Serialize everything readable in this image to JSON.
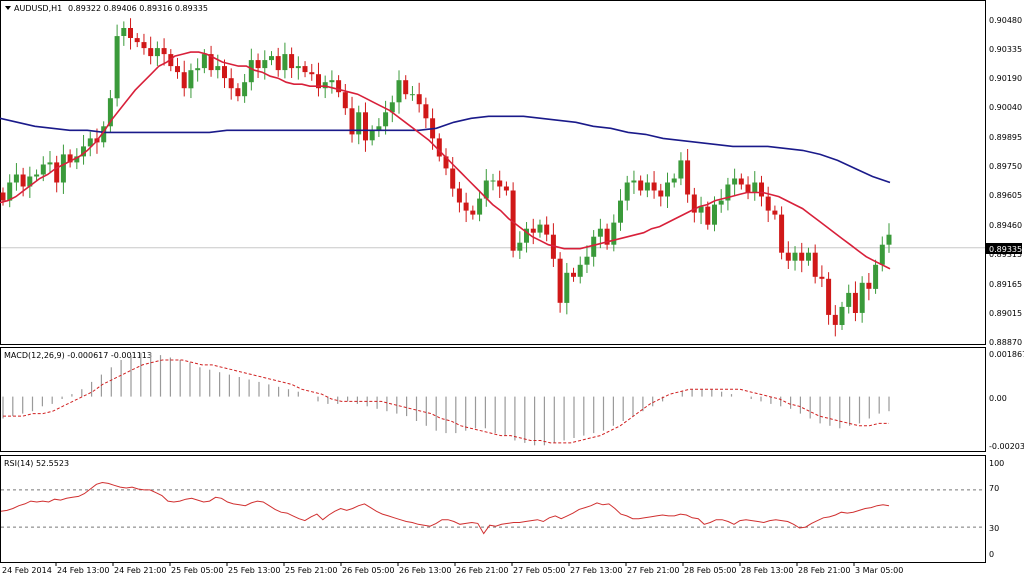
{
  "header": {
    "symbol": "AUDUSD,H1",
    "ohlc": "0.89322 0.89406 0.89316 0.89335"
  },
  "colors": {
    "bull": "#3a9a3a",
    "bear": "#d01818",
    "ma_fast": "#d8203a",
    "ma_slow": "#1a1a8a",
    "macd_hist": "#9a9a9a",
    "macd_signal": "#d02020",
    "rsi": "#d03030",
    "grid_dash": "#777777"
  },
  "chart_data": [
    {
      "type": "candlestick",
      "title": "AUDUSD,H1",
      "ylim": [
        0.8887,
        0.9048
      ],
      "yticks": [
        "0.90480",
        "0.90335",
        "0.90190",
        "0.90040",
        "0.89895",
        "0.89750",
        "0.89605",
        "0.89460",
        "0.89315",
        "0.89165",
        "0.89015",
        "0.88870"
      ],
      "current_price": "0.89335",
      "xticks": [
        "24 Feb 2014",
        "24 Feb 13:00",
        "24 Feb 21:00",
        "25 Feb 05:00",
        "25 Feb 13:00",
        "25 Feb 21:00",
        "26 Feb 05:00",
        "26 Feb 13:00",
        "26 Feb 21:00",
        "27 Feb 05:00",
        "27 Feb 13:00",
        "27 Feb 21:00",
        "28 Feb 05:00",
        "28 Feb 13:00",
        "28 Feb 21:00",
        "3 Mar 05:00"
      ],
      "closes": [
        0.8957,
        0.8966,
        0.897,
        0.8964,
        0.8969,
        0.897,
        0.8975,
        0.8976,
        0.8966,
        0.898,
        0.8976,
        0.8979,
        0.8984,
        0.8988,
        0.8986,
        0.8994,
        0.9008,
        0.9039,
        0.9043,
        0.9038,
        0.9036,
        0.9033,
        0.9029,
        0.9033,
        0.903,
        0.9024,
        0.9021,
        0.9013,
        0.9022,
        0.9023,
        0.903,
        0.9022,
        0.9024,
        0.9018,
        0.9013,
        0.9009,
        0.9016,
        0.9027,
        0.9023,
        0.9027,
        0.9029,
        0.9022,
        0.903,
        0.9023,
        0.9024,
        0.9021,
        0.902,
        0.9013,
        0.9016,
        0.9017,
        0.9011,
        0.9003,
        0.899,
        0.9001,
        0.8987,
        0.8992,
        0.8994,
        0.9001,
        0.9006,
        0.9017,
        0.901,
        0.901,
        0.9005,
        0.8998,
        0.8988,
        0.8979,
        0.8973,
        0.8963,
        0.8956,
        0.8952,
        0.895,
        0.8958,
        0.8967,
        0.8967,
        0.8964,
        0.8962,
        0.8932,
        0.8936,
        0.8943,
        0.8941,
        0.8945,
        0.894,
        0.8928,
        0.8906,
        0.8921,
        0.8919,
        0.8925,
        0.8929,
        0.8939,
        0.8943,
        0.8935,
        0.8946,
        0.8957,
        0.8966,
        0.8967,
        0.8962,
        0.8966,
        0.8962,
        0.8959,
        0.8966,
        0.8968,
        0.8977,
        0.896,
        0.8951,
        0.8954,
        0.8945,
        0.8955,
        0.8957,
        0.8965,
        0.8968,
        0.8965,
        0.8961,
        0.8966,
        0.8959,
        0.8952,
        0.895,
        0.8931,
        0.8927,
        0.8931,
        0.8927,
        0.8931,
        0.8919,
        0.8918,
        0.89,
        0.8895,
        0.8904,
        0.8911,
        0.8901,
        0.8916,
        0.8913,
        0.8925,
        0.8935,
        0.894
      ],
      "series": [
        {
          "name": "",
          "kind": "MA fast",
          "values": [
            0.8956,
            0.8957,
            0.8959,
            0.8962,
            0.8965,
            0.8968,
            0.897,
            0.8973,
            0.8975,
            0.8977,
            0.8979,
            0.8982,
            0.8986,
            0.8991,
            0.8997,
            0.9002,
            0.9007,
            0.9012,
            0.9016,
            0.902,
            0.9024,
            0.9026,
            0.9029,
            0.903,
            0.9031,
            0.9031,
            0.903,
            0.9028,
            0.9026,
            0.9025,
            0.9024,
            0.9024,
            0.9022,
            0.9021,
            0.9019,
            0.9018,
            0.9016,
            0.9015,
            0.9015,
            0.9014,
            0.9014,
            0.9014,
            0.9013,
            0.9012,
            0.9011,
            0.901,
            0.9008,
            0.9006,
            0.9004,
            0.9002,
            0.8999,
            0.8996,
            0.8993,
            0.899,
            0.8987,
            0.8983,
            0.8979,
            0.8975,
            0.8971,
            0.8967,
            0.8963,
            0.8959,
            0.8955,
            0.8952,
            0.8948,
            0.8945,
            0.8942,
            0.8939,
            0.8937,
            0.8935,
            0.8934,
            0.8933,
            0.8933,
            0.8933,
            0.8934,
            0.8935,
            0.8936,
            0.8937,
            0.8938,
            0.8939,
            0.894,
            0.8941,
            0.8943,
            0.8944,
            0.8946,
            0.8948,
            0.895,
            0.8952,
            0.8954,
            0.8955,
            0.8957,
            0.8958,
            0.8959,
            0.896,
            0.8961,
            0.8961,
            0.8961,
            0.896,
            0.8959,
            0.8957,
            0.8955,
            0.8953,
            0.895,
            0.8947,
            0.8944,
            0.8941,
            0.8938,
            0.8935,
            0.8932,
            0.8929,
            0.8927,
            0.8925,
            0.8923
          ]
        },
        {
          "name": "",
          "kind": "MA slow",
          "values": [
            0.8998,
            0.8996,
            0.8994,
            0.8993,
            0.8992,
            0.8992,
            0.8991,
            0.8991,
            0.8991,
            0.8991,
            0.8991,
            0.8991,
            0.8991,
            0.8992,
            0.8992,
            0.8992,
            0.8992,
            0.8992,
            0.8992,
            0.8992,
            0.8992,
            0.8992,
            0.8992,
            0.8992,
            0.8992,
            0.8993,
            0.8996,
            0.8998,
            0.8999,
            0.8999,
            0.8999,
            0.8998,
            0.8997,
            0.8996,
            0.8994,
            0.8993,
            0.8991,
            0.899,
            0.8988,
            0.8987,
            0.8986,
            0.8985,
            0.8984,
            0.8984,
            0.8984,
            0.8983,
            0.8982,
            0.898,
            0.8977,
            0.8973,
            0.8969,
            0.8966
          ]
        }
      ]
    },
    {
      "type": "bar+line",
      "title": "MACD(12,26,9) -0.000617 -0.001113",
      "ylim": [
        -0.00215,
        0.00195
      ],
      "yticks": [
        "0.001867",
        "0.00",
        "-0.00203"
      ],
      "histogram": [
        -0.0009,
        -0.0008,
        -0.0007,
        -0.0006,
        -0.0004,
        -0.0003,
        -0.0001,
        0.0001,
        0.0003,
        0.0006,
        0.0009,
        0.0012,
        0.0015,
        0.0017,
        0.0018,
        0.0018,
        0.0017,
        0.0016,
        0.0015,
        0.0014,
        0.0012,
        0.0011,
        0.001,
        0.0009,
        0.0008,
        0.0007,
        0.0006,
        0.0005,
        0.0004,
        0.0003,
        0.0002,
        0.0,
        -0.0002,
        -0.0003,
        -0.0003,
        -0.0002,
        -0.0003,
        -0.0004,
        -0.0005,
        -0.0006,
        -0.0007,
        -0.0008,
        -0.001,
        -0.0012,
        -0.0014,
        -0.0015,
        -0.0015,
        -0.0014,
        -0.0013,
        -0.0013,
        -0.0015,
        -0.0016,
        -0.0018,
        -0.0019,
        -0.002,
        -0.002,
        -0.0019,
        -0.0018,
        -0.0017,
        -0.0016,
        -0.0015,
        -0.0014,
        -0.0012,
        -0.001,
        -0.0008,
        -0.0006,
        -0.0004,
        -0.0002,
        0.0,
        0.0002,
        0.0003,
        0.0003,
        0.0003,
        0.0002,
        0.0001,
        0.0,
        -0.0001,
        -0.0002,
        -0.0003,
        -0.0004,
        -0.0005,
        -0.0007,
        -0.0009,
        -0.0011,
        -0.0012,
        -0.0013,
        -0.0012,
        -0.0011,
        -0.0009,
        -0.0007,
        -0.0006
      ],
      "signal": [
        -0.0008,
        -0.0008,
        -0.0008,
        -0.0007,
        -0.0007,
        -0.0006,
        -0.0004,
        -0.0002,
        0.0,
        0.0002,
        0.0005,
        0.0007,
        0.0009,
        0.0011,
        0.0013,
        0.0014,
        0.0015,
        0.0015,
        0.0015,
        0.0014,
        0.0013,
        0.0013,
        0.0012,
        0.0011,
        0.001,
        0.0009,
        0.0008,
        0.0007,
        0.0006,
        0.0005,
        0.0003,
        0.0002,
        0.0001,
        -0.0001,
        -0.0002,
        -0.0002,
        -0.0002,
        -0.0002,
        -0.0002,
        -0.0003,
        -0.0004,
        -0.0005,
        -0.0006,
        -0.0007,
        -0.0009,
        -0.001,
        -0.0012,
        -0.0013,
        -0.0014,
        -0.0015,
        -0.0016,
        -0.0016,
        -0.0017,
        -0.0018,
        -0.0018,
        -0.0019,
        -0.0019,
        -0.0019,
        -0.0018,
        -0.0017,
        -0.0016,
        -0.0014,
        -0.0012,
        -0.0009,
        -0.0006,
        -0.0003,
        -0.0001,
        0.0001,
        0.0002,
        0.0003,
        0.0003,
        0.0003,
        0.0003,
        0.0003,
        0.0003,
        0.0002,
        0.0001,
        0.0,
        -0.0001,
        -0.0003,
        -0.0004,
        -0.0006,
        -0.0008,
        -0.0009,
        -0.001,
        -0.0011,
        -0.0012,
        -0.0012,
        -0.0011,
        -0.0011
      ]
    },
    {
      "type": "line",
      "title": "RSI(14) 52.5523",
      "ylim": [
        0,
        100
      ],
      "yticks": [
        "100",
        "70",
        "30",
        "0"
      ],
      "levels": [
        70,
        30
      ],
      "values": [
        47,
        48,
        50,
        53,
        55,
        58,
        57,
        58,
        57,
        60,
        59,
        61,
        62,
        63,
        66,
        71,
        76,
        78,
        77,
        75,
        73,
        72,
        73,
        71,
        70,
        70,
        67,
        64,
        58,
        57,
        58,
        60,
        61,
        59,
        57,
        58,
        62,
        61,
        57,
        55,
        54,
        53,
        56,
        58,
        57,
        53,
        49,
        46,
        45,
        42,
        39,
        37,
        41,
        44,
        38,
        43,
        47,
        50,
        48,
        50,
        53,
        55,
        51,
        47,
        44,
        42,
        40,
        38,
        36,
        35,
        33,
        32,
        31,
        34,
        38,
        38,
        36,
        33,
        34,
        35,
        34,
        23,
        32,
        31,
        33,
        34,
        35,
        35,
        36,
        37,
        38,
        36,
        40,
        42,
        39,
        42,
        45,
        49,
        51,
        53,
        56,
        54,
        55,
        50,
        44,
        42,
        39,
        39,
        40,
        41,
        42,
        43,
        42,
        42,
        44,
        43,
        40,
        39,
        33,
        35,
        38,
        38,
        36,
        33,
        37,
        38,
        37,
        36,
        35,
        37,
        38,
        37,
        36,
        33,
        29,
        30,
        34,
        37,
        40,
        41,
        43,
        46,
        45,
        46,
        48,
        50,
        51,
        53,
        54,
        53
      ]
    }
  ]
}
